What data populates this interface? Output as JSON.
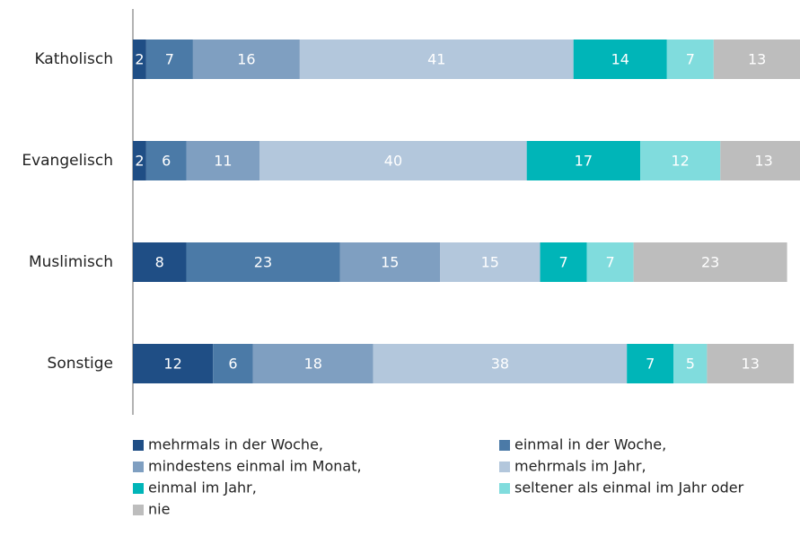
{
  "chart_data": {
    "type": "stacked-bar-horizontal",
    "categories": [
      "Katholisch",
      "Evangelisch",
      "Muslimisch",
      "Sonstige"
    ],
    "xlim": [
      0,
      100
    ],
    "series": [
      {
        "name": "mehrmals in der Woche,",
        "color": "#1f4e85",
        "values": [
          2,
          2,
          8,
          12
        ]
      },
      {
        "name": "einmal in der Woche,",
        "color": "#4b7aa7",
        "values": [
          7,
          6,
          23,
          6
        ]
      },
      {
        "name": "mindestens einmal im Monat,",
        "color": "#7f9fc1",
        "values": [
          16,
          11,
          15,
          18
        ]
      },
      {
        "name": "mehrmals im Jahr,",
        "color": "#b3c7dc",
        "values": [
          41,
          40,
          15,
          38
        ]
      },
      {
        "name": "einmal im Jahr,",
        "color": "#00b5b8",
        "values": [
          14,
          17,
          7,
          7
        ]
      },
      {
        "name": "seltener als einmal im Jahr oder",
        "color": "#80dcdd",
        "values": [
          7,
          12,
          7,
          5
        ]
      },
      {
        "name": "nie",
        "color": "#bdbdbd",
        "values": [
          13,
          13,
          23,
          13
        ]
      }
    ]
  }
}
